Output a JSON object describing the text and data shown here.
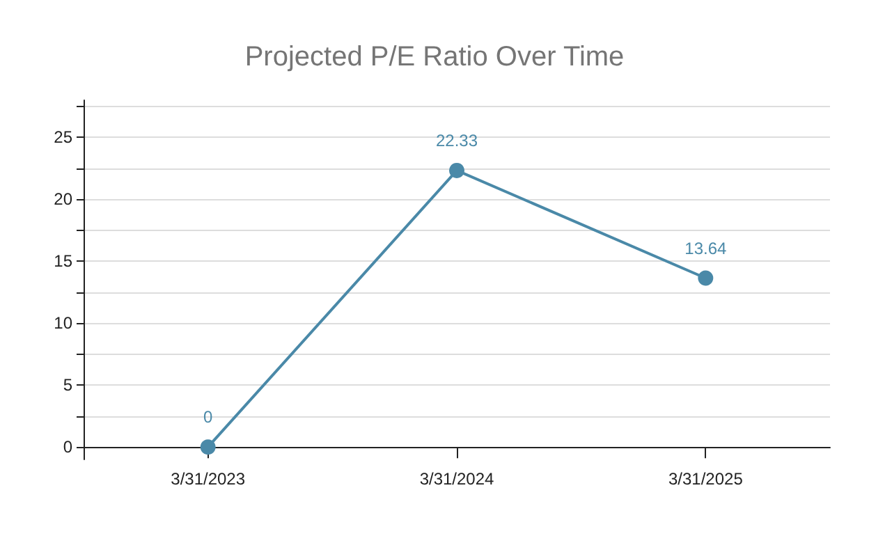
{
  "chart_data": {
    "type": "line",
    "title": "Projected P/E Ratio Over Time",
    "categories": [
      "3/31/2023",
      "3/31/2024",
      "3/31/2025"
    ],
    "series": [
      {
        "color": "#4a89a8",
        "values": [
          0,
          22.33,
          13.64
        ]
      }
    ],
    "ylim": [
      -1,
      28
    ],
    "yticks": [
      0,
      {
        "value": 2.5,
        "label": null
      },
      5,
      {
        "value": 7.5,
        "label": null
      },
      10,
      {
        "value": 12.5,
        "label": null
      },
      15,
      {
        "value": 17.5,
        "label": null
      },
      20,
      {
        "value": 22.5,
        "label": null
      },
      25,
      {
        "value": 27.5,
        "label": null
      }
    ],
    "grid": "y",
    "data_labels": true,
    "marker": "circle",
    "line_style": "solid"
  }
}
